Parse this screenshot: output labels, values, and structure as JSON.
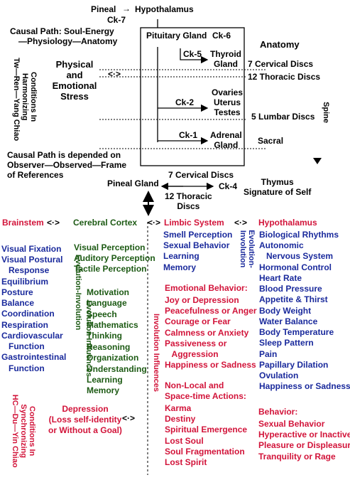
{
  "top": {
    "pineal": "Pineal",
    "arrow": "→",
    "hypothalamus": "Hypothalamus",
    "ck7": "Ck-7",
    "causal_path_l1": "Causal Path: Soul-Energy",
    "causal_path_l2": "—Physiology—Anatomy"
  },
  "left_top": {
    "vertical_label": "Conditions In\nHarmonizing\nTw—Ren—Yang Chiao",
    "stress": "Physical\nand\nEmotional\nStress",
    "stress_arrow": "<·>",
    "observer": "Causal Path is depended on\nObserver—Observed—Frame\nof References"
  },
  "box": {
    "pituitary": "Pituitary Gland",
    "ck6": "Ck-6",
    "ck5": "Ck-5",
    "thyroid": "Thyroid\nGland",
    "ck2": "Ck-2",
    "ovaries": "Ovaries\nUterus\nTestes",
    "ck1": "Ck-1",
    "adrenal": "Adrenal\nGland"
  },
  "anatomy": {
    "title": "Anatomy",
    "cervical": "7 Cervical Discs",
    "thoracic": "12 Thoracic Discs",
    "lumbar": "5 Lumbar Discs",
    "sacral": "Sacral",
    "spine": "Spine"
  },
  "middle": {
    "pineal_gland": "Pineal Gland",
    "cervical": "7 Cervical Discs",
    "ck4": "Ck-4",
    "thoracic": "12 Thoracic\nDiscs",
    "thymus": "Thymus\nSignature of Self"
  },
  "headers": {
    "brainstem": "Brainstem",
    "cortex": "Cerebral Cortex",
    "limbic": "Limbic System",
    "hypothalamus": "Hypothalamus",
    "arrow": "<·>"
  },
  "brainstem_items": "Visual Fixation\nVisual Postural\n   Response\nEquilibrium\nPosture\nBalance\nCoordination\nRespiration\nCardiovascular\n   Function\nGastrointestinal\n   Function",
  "cortex_perception": "Visual Perception\nAuditory Perception\nTactile Perception",
  "cortex_items": "Motivation\nLanguage\nSpeech\nMathematics\nThinking\nReasoning\nOrganization\nUnderstanding\nLearning\nMemory",
  "vertical_labels": {
    "evolution_involution": "Evolution-Involution",
    "evolution_influences": "Evolution Influences",
    "involution_influences": "Involution Influences",
    "evolution_involution_2": "Evolution-\nInvolution",
    "conditions_sync": "Conditions In\nSynchronizing\nHC—Du—Yin Chiao"
  },
  "limbic_items": "Smell Perception\nSexual Behavior\nLearning\nMemory",
  "emotional": {
    "title": "Emotional Behavior:",
    "items": "Joy or Depression\nPeacefulness or Anger\nCourage or Fear\nCalmness or Anxiety\nPassiveness or\n   Aggression\nHappiness or Sadness"
  },
  "nonlocal": {
    "title": "Non-Local and\nSpace-time Actions:",
    "items": "Karma\nDestiny\nSpiritual Emergence\nLost Soul\nSoul Fragmentation\nLost Spirit"
  },
  "hypo_items": "Biological Rhythms\nAutonomic\n   Nervous System\nHormonal Control\nHeart Rate\nBlood Pressure\nAppetite & Thirst\nBody Weight\nWater Balance\nBody Temperature\nSleep Pattern\nPain\nPapillary Dilation\nOvulation\nHappiness or Sadness",
  "behavior": {
    "title": "Behavior:",
    "items": "Sexual Behavior\nHyperactive or Inactive\nPleasure or Displeasure\nTranquility or Rage"
  },
  "depression": {
    "text": "Depression\n(Loss self-identity\nor Without a Goal)",
    "arrow": "<·>"
  }
}
